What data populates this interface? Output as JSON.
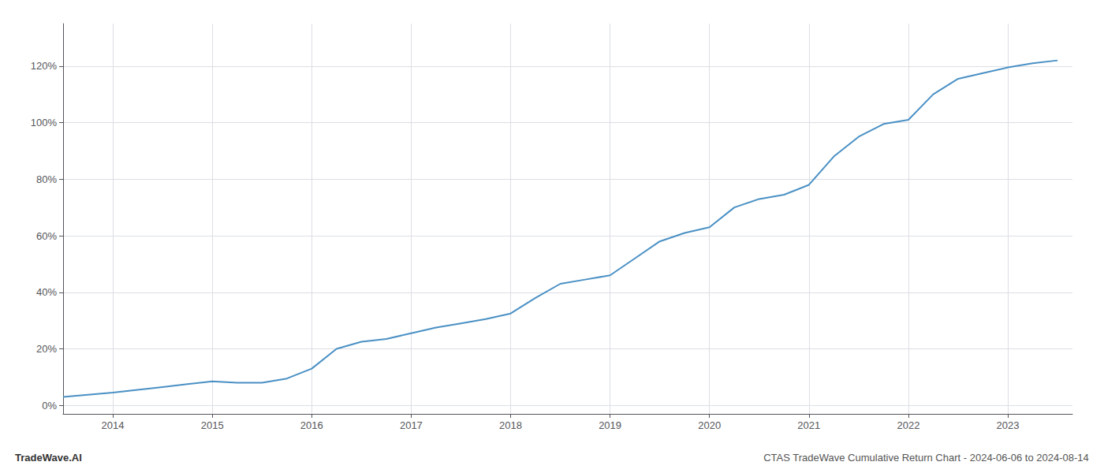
{
  "chart_data": {
    "type": "line",
    "title": "CTAS TradeWave Cumulative Return Chart - 2024-06-06 to 2024-08-14",
    "annotations": [
      "TradeWave.AI"
    ],
    "color": "#4a90c4",
    "grid": true,
    "x": [
      2013.5,
      2014.0,
      2014.25,
      2014.5,
      2014.75,
      2015.0,
      2015.25,
      2015.5,
      2015.75,
      2016.0,
      2016.25,
      2016.5,
      2016.75,
      2017.0,
      2017.25,
      2017.5,
      2017.75,
      2018.0,
      2018.25,
      2018.5,
      2018.75,
      2019.0,
      2019.25,
      2019.5,
      2019.75,
      2020.0,
      2020.25,
      2020.5,
      2020.75,
      2021.0,
      2021.25,
      2021.5,
      2021.75,
      2022.0,
      2022.25,
      2022.5,
      2022.75,
      2023.0,
      2023.25,
      2023.5
    ],
    "values": [
      3.0,
      4.5,
      5.5,
      6.5,
      7.5,
      8.5,
      8.0,
      8.0,
      9.5,
      13.0,
      20.0,
      22.5,
      23.5,
      25.5,
      27.5,
      29.0,
      30.5,
      32.5,
      38.0,
      43.0,
      44.5,
      46.0,
      52.0,
      58.0,
      61.0,
      63.0,
      70.0,
      73.0,
      74.5,
      78.0,
      88.0,
      95.0,
      99.5,
      101.0,
      110.0,
      115.5,
      117.5,
      119.5,
      121.0,
      122.0
    ],
    "xlim": [
      2013.5,
      2023.65
    ],
    "xticks": [
      2014,
      2015,
      2016,
      2017,
      2018,
      2019,
      2020,
      2021,
      2022,
      2023
    ],
    "ylim": [
      -3,
      135
    ],
    "yticks": [
      {
        "value": 0,
        "label": "0%"
      },
      {
        "value": 20,
        "label": "20%"
      },
      {
        "value": 40,
        "label": "40%"
      },
      {
        "value": 60,
        "label": "60%"
      },
      {
        "value": 80,
        "label": "80%"
      },
      {
        "value": 100,
        "label": "100%"
      },
      {
        "value": 120,
        "label": "120%"
      }
    ]
  }
}
